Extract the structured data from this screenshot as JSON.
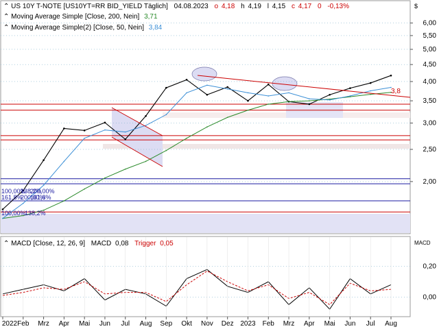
{
  "header": {
    "title": "US 10Y T-NOTE [US10YT=RR BID_YIELD Täglich]",
    "date": "04.08.2023",
    "ohlc": [
      {
        "label": "o",
        "value": "4,18",
        "color": "#cc0000"
      },
      {
        "label": "h",
        "value": "4,19",
        "color": "#000000"
      },
      {
        "label": "l",
        "value": "4,15",
        "color": "#000000"
      },
      {
        "label": "c",
        "value": "4,17",
        "color": "#cc0000"
      }
    ],
    "change": "0",
    "change_pct": "-0,13%",
    "indicators": [
      {
        "label": "Moving Average Simple  [Close, 200, Nein]",
        "value": "3,71",
        "color": "#2a8a2a"
      },
      {
        "label": "Moving Average Simple(2)  [Close, 50, Nein]",
        "value": "3,84",
        "color": "#3b8fd6"
      }
    ]
  },
  "macd_header": {
    "label": "MACD  [Close, 12, 26, 9]",
    "macd_label": "MACD",
    "macd_value": "0,08",
    "trigger_label": "Trigger",
    "trigger_value": "0,05"
  },
  "scale_label": "$",
  "macd_scale_label": "MACD",
  "fib_labels": [
    "100,00%",
    "138,2%",
    "161,8%",
    "200,00%",
    "100,00%",
    "138,2%",
    "161,8%",
    "200,00%"
  ],
  "colors": {
    "price": "#000000",
    "ma200": "#2a8a2a",
    "ma50": "#3b8fd6",
    "trendline": "#cc0000",
    "horizontal_red": "#cc0000",
    "horizontal_blue": "#1a1aa0",
    "channel_fill": "#d9d9f2",
    "macd": "#000000",
    "trigger": "#cc0000",
    "grid": "#7fb2cc"
  },
  "chart_data": [
    {
      "type": "line",
      "title": "US 10Y T-NOTE [US10YT=RR BID_YIELD Täglich]",
      "y_scale": "log",
      "ylim": [
        1.4,
        6.4
      ],
      "y_ticks": [
        "6,00",
        "5,50",
        "5,00",
        "4,50",
        "4,00",
        "3,50",
        "3,00",
        "2,50",
        "2,00"
      ],
      "x_ticks": [
        "2022",
        "Feb",
        "Mrz",
        "Apr",
        "Mai",
        "Jun",
        "Jul",
        "Aug",
        "Sep",
        "Okt",
        "Nov",
        "Dez",
        "2023",
        "Feb",
        "Mrz",
        "Apr",
        "Mai",
        "Jun",
        "Jul",
        "Aug"
      ],
      "x": [
        "2022-01",
        "2022-02",
        "2022-03",
        "2022-04",
        "2022-05",
        "2022-06",
        "2022-07",
        "2022-08",
        "2022-09",
        "2022-10",
        "2022-11",
        "2022-12",
        "2023-01",
        "2023-02",
        "2023-03",
        "2023-04",
        "2023-05",
        "2023-06",
        "2023-07",
        "2023-08"
      ],
      "series": [
        {
          "values": [
            1.65,
            1.88,
            2.32,
            2.89,
            2.85,
            3.01,
            2.68,
            3.15,
            3.83,
            4.05,
            3.65,
            3.85,
            3.5,
            3.92,
            3.48,
            3.42,
            3.65,
            3.82,
            3.96,
            4.17
          ]
        },
        {
          "name": "Moving Average Simple  [Close, 200, Nein]",
          "values": [
            1.55,
            1.58,
            1.64,
            1.75,
            1.9,
            2.05,
            2.18,
            2.3,
            2.48,
            2.7,
            2.92,
            3.12,
            3.28,
            3.42,
            3.48,
            3.5,
            3.54,
            3.6,
            3.66,
            3.71
          ]
        },
        {
          "name": "Moving Average Simple(2)  [Close, 50, Nein]",
          "values": [
            1.55,
            1.72,
            1.95,
            2.3,
            2.7,
            2.86,
            2.82,
            2.95,
            3.18,
            3.7,
            3.9,
            3.8,
            3.7,
            3.62,
            3.7,
            3.55,
            3.52,
            3.62,
            3.75,
            3.84
          ]
        }
      ],
      "annotations": [
        {
          "type": "trendline",
          "from": [
            "2022-10",
            4.35
          ],
          "to": [
            "2023-08",
            3.8
          ],
          "label": "3,8"
        },
        {
          "type": "horizontal",
          "value": 3.42,
          "color": "red"
        },
        {
          "type": "horizontal",
          "value": 3.28,
          "color": "red"
        },
        {
          "type": "horizontal",
          "value": 2.75,
          "color": "red"
        },
        {
          "type": "horizontal",
          "value": 2.67,
          "color": "red"
        },
        {
          "type": "horizontal",
          "value": 2.04,
          "color": "blue"
        },
        {
          "type": "horizontal",
          "value": 1.97,
          "color": "blue"
        },
        {
          "type": "horizontal",
          "value": 1.75,
          "color": "blue"
        },
        {
          "type": "horizontal",
          "value": 1.62,
          "color": "red"
        }
      ]
    },
    {
      "type": "line",
      "title": "MACD  [Close, 12, 26, 9]",
      "ylim": [
        -0.12,
        0.32
      ],
      "y_ticks": [
        "0,20",
        "0,00"
      ],
      "series": [
        {
          "name": "MACD",
          "values": [
            0.02,
            0.05,
            0.08,
            0.04,
            0.12,
            -0.02,
            0.05,
            0.02,
            -0.06,
            0.12,
            0.18,
            0.07,
            0.03,
            0.1,
            -0.05,
            0.06,
            -0.08,
            0.12,
            0.02,
            0.08
          ]
        },
        {
          "name": "Trigger",
          "values": [
            0.01,
            0.03,
            0.06,
            0.05,
            0.1,
            0.02,
            0.03,
            0.03,
            -0.03,
            0.08,
            0.17,
            0.1,
            0.04,
            0.08,
            -0.01,
            0.03,
            -0.05,
            0.09,
            0.04,
            0.05
          ]
        }
      ]
    }
  ]
}
